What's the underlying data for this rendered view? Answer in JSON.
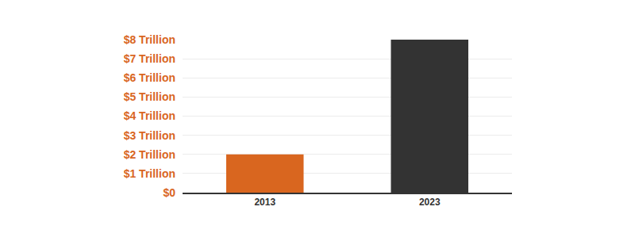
{
  "chart_data": {
    "type": "bar",
    "categories": [
      "2013",
      "2023"
    ],
    "values": [
      2,
      8
    ],
    "colors": [
      "#d9661f",
      "#333333"
    ],
    "ylim": [
      0,
      8
    ],
    "yticks": [
      {
        "value": 0,
        "label": "$0"
      },
      {
        "value": 1,
        "label": "$1 Trillion"
      },
      {
        "value": 2,
        "label": "$2 Trillion"
      },
      {
        "value": 3,
        "label": "$3 Trillion"
      },
      {
        "value": 4,
        "label": "$4 Trillion"
      },
      {
        "value": 5,
        "label": "$5 Trillion"
      },
      {
        "value": 6,
        "label": "$6 Trillion"
      },
      {
        "value": 7,
        "label": "$7 Trillion"
      },
      {
        "value": 8,
        "label": "$8 Trillion"
      }
    ],
    "grid": true
  }
}
